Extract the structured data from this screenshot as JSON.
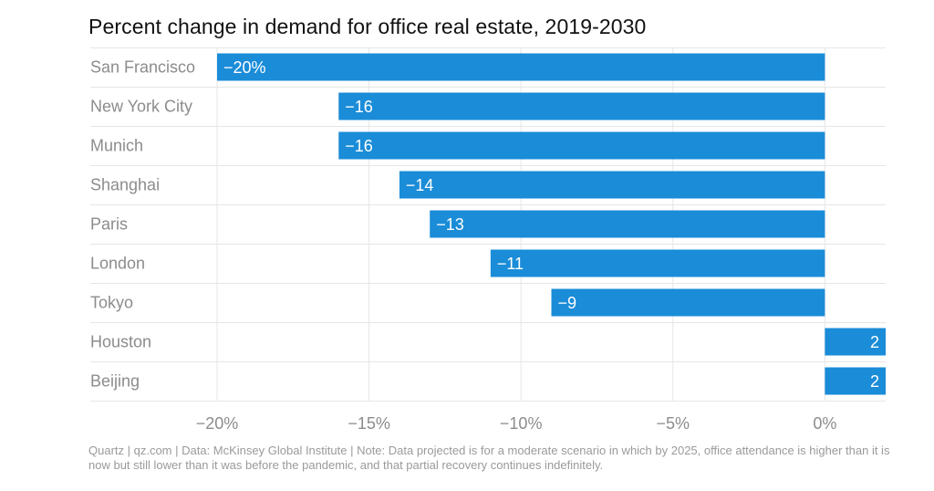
{
  "title": "Percent change in demand for office real estate, 2019-2030",
  "footer": "Quartz | qz.com | Data: McKinsey Global Institute | Note: Data projected is for a moderate scenario in which by 2025, office attendance is higher than it is now but still lower than it was before the pandemic, and that partial recovery continues indefinitely.",
  "colors": {
    "bar": "#1a8cd8",
    "label": "#8c8c8c",
    "grid": "#e6e6e6",
    "bar_text": "#ffffff"
  },
  "chart_data": {
    "type": "bar",
    "orientation": "horizontal",
    "categories": [
      "San Francisco",
      "New York City",
      "Munich",
      "Shanghai",
      "Paris",
      "London",
      "Tokyo",
      "Houston",
      "Beijing"
    ],
    "values": [
      -20,
      -16,
      -16,
      -14,
      -13,
      -11,
      -9,
      2,
      2
    ],
    "value_labels": [
      "−20%",
      "−16",
      "−16",
      "−14",
      "−13",
      "−11",
      "−9",
      "2",
      "2"
    ],
    "xlim": [
      -20,
      2
    ],
    "xticks": [
      -20,
      -15,
      -10,
      -5,
      0
    ],
    "xtick_labels": [
      "−20%",
      "−15%",
      "−10%",
      "−5%",
      "0%"
    ],
    "grid": true,
    "xlabel": "",
    "ylabel": ""
  }
}
